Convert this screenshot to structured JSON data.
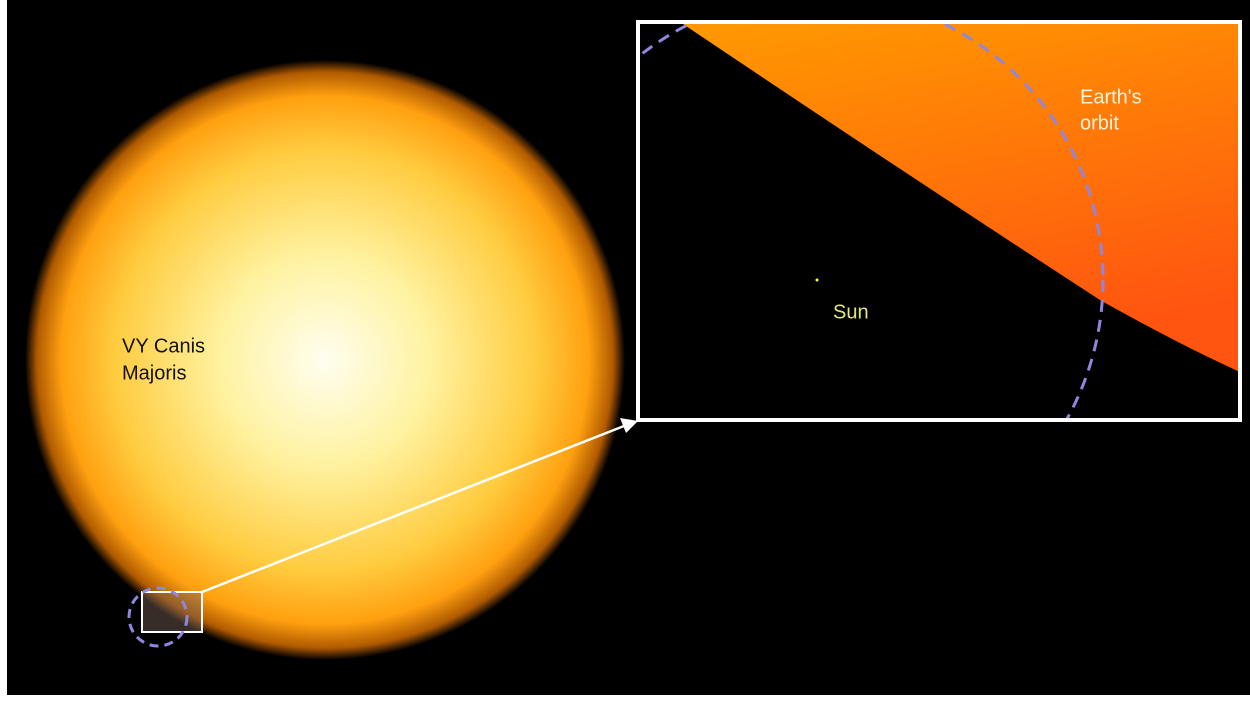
{
  "labels": {
    "star": {
      "lines": [
        "VY Canis",
        "Majoris"
      ]
    },
    "sun": "Sun",
    "orbit": {
      "lines": [
        "Earth's",
        "orbit"
      ]
    }
  }
}
